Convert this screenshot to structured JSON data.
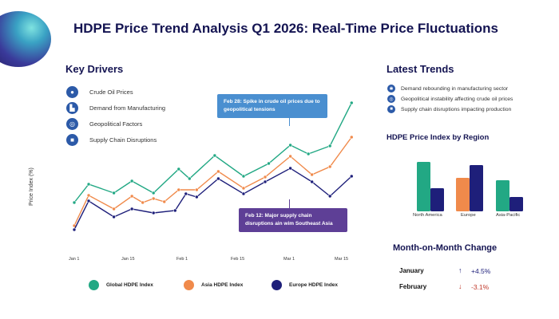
{
  "header": {
    "title": "HDPE Price Trend Analysis Q1 2026: Real-Time Price Fluctuations",
    "logo": "sphere-logo"
  },
  "key_drivers": {
    "title": "Key Drivers",
    "items": [
      {
        "icon": "drop-icon",
        "label": "Crude Oil Prices"
      },
      {
        "icon": "factory-icon",
        "label": "Demand from Manufacturing"
      },
      {
        "icon": "globe-icon",
        "label": "Geopolitical Factors"
      },
      {
        "icon": "truck-icon",
        "label": "Supply Chain Disruptions"
      }
    ]
  },
  "colors": {
    "global": "#22a884",
    "asia": "#f08a4b",
    "europe": "#1e1f7a",
    "callout_blue": "#4a8fd0",
    "callout_purple": "#5e3f96",
    "down": "#c0392b"
  },
  "chart_data": {
    "type": "line",
    "title": "",
    "xlabel": "",
    "ylabel": "Price Index (%)",
    "ylim": [
      0,
      100
    ],
    "xlim": [
      "2026-01-01",
      "2026-03-19"
    ],
    "x_ticks": [
      {
        "date": "2026-01-01",
        "label": "Jan 1"
      },
      {
        "date": "2026-01-15",
        "label": "Jan 15"
      },
      {
        "date": "2026-02-01",
        "label": "Feb 1"
      },
      {
        "date": "2026-02-15",
        "label": "Feb 15"
      },
      {
        "date": "2026-03-01",
        "label": "Mar 1"
      },
      {
        "date": "2026-03-15",
        "label": "Mar 15"
      }
    ],
    "grid": false,
    "legend": "bottom",
    "series": [
      {
        "name": "Global HDPE Index",
        "color": "#22a884",
        "points": [
          [
            "2026-01-01",
            23
          ],
          [
            "2026-01-05",
            34.5
          ],
          [
            "2026-01-12",
            29
          ],
          [
            "2026-01-17",
            36.5
          ],
          [
            "2026-01-23",
            29
          ],
          [
            "2026-01-30",
            44
          ],
          [
            "2026-02-02",
            38
          ],
          [
            "2026-02-09",
            52.5
          ],
          [
            "2026-02-17",
            39.5
          ],
          [
            "2026-02-24",
            47.5
          ],
          [
            "2026-03-02",
            59
          ],
          [
            "2026-03-07",
            53.5
          ],
          [
            "2026-03-13",
            58.5
          ],
          [
            "2026-03-19",
            85.5
          ]
        ]
      },
      {
        "name": "Asia HDPE Index",
        "color": "#f08a4b",
        "points": [
          [
            "2026-01-01",
            8.5
          ],
          [
            "2026-01-05",
            27.5
          ],
          [
            "2026-01-12",
            19
          ],
          [
            "2026-01-17",
            27
          ],
          [
            "2026-01-20",
            23
          ],
          [
            "2026-01-23",
            25.5
          ],
          [
            "2026-01-26",
            23.5
          ],
          [
            "2026-01-30",
            31
          ],
          [
            "2026-02-04",
            31
          ],
          [
            "2026-02-10",
            42.5
          ],
          [
            "2026-02-17",
            32
          ],
          [
            "2026-02-23",
            39
          ],
          [
            "2026-03-02",
            52
          ],
          [
            "2026-03-08",
            40.5
          ],
          [
            "2026-03-13",
            45.5
          ],
          [
            "2026-03-19",
            64
          ]
        ]
      },
      {
        "name": "Europe HDPE Index",
        "color": "#1e1f7a",
        "points": [
          [
            "2026-01-01",
            6
          ],
          [
            "2026-01-05",
            24
          ],
          [
            "2026-01-12",
            14
          ],
          [
            "2026-01-17",
            19
          ],
          [
            "2026-01-23",
            16.5
          ],
          [
            "2026-01-29",
            18
          ],
          [
            "2026-02-01",
            28.5
          ],
          [
            "2026-02-04",
            26.5
          ],
          [
            "2026-02-10",
            38
          ],
          [
            "2026-02-17",
            28.5
          ],
          [
            "2026-02-23",
            36
          ],
          [
            "2026-03-02",
            44.5
          ],
          [
            "2026-03-08",
            36
          ],
          [
            "2026-03-13",
            27
          ],
          [
            "2026-03-19",
            39.5
          ]
        ]
      }
    ],
    "annotations": [
      {
        "text": "Feb 28: Spike in crude oil prices due to geopolitical tensions"
      },
      {
        "text": "Feb 12: Major supply chain disruptions ain wim Southeast Asia"
      }
    ]
  },
  "latest_trends": {
    "title": "Latest Trends",
    "items": [
      {
        "icon": "gear-icon",
        "label": "Demand rebounding in manufacturing sector"
      },
      {
        "icon": "globe-icon",
        "label": "Geopolitical instability affecting crude oil prices"
      },
      {
        "icon": "truck-icon",
        "label": "Supply chain disruptions impacting production"
      }
    ]
  },
  "region_chart": {
    "type": "bar",
    "title": "HDPE Price Index by Region",
    "categories": [
      "North America",
      "Europe",
      "Asia-Pacific"
    ],
    "ylim": [
      0,
      70
    ],
    "bars": [
      {
        "category": "North America",
        "values": [
          {
            "color": "#22a884",
            "value": 62
          },
          {
            "color": "#1e1f7a",
            "value": 29
          }
        ]
      },
      {
        "category": "Europe",
        "values": [
          {
            "color": "#f08a4b",
            "value": 42
          },
          {
            "color": "#1e1f7a",
            "value": 58
          }
        ]
      },
      {
        "category": "Asia-Pacific",
        "values": [
          {
            "color": "#22a884",
            "value": 39
          },
          {
            "color": "#1e1f7a",
            "value": 18
          }
        ]
      }
    ]
  },
  "mom": {
    "title": "Month-on-Month Change",
    "rows": [
      {
        "month": "January",
        "arrow": "↑",
        "value": "+4.5%",
        "direction": "up"
      },
      {
        "month": "February",
        "arrow": "↓",
        "value": "-3.1%",
        "direction": "down"
      }
    ]
  }
}
